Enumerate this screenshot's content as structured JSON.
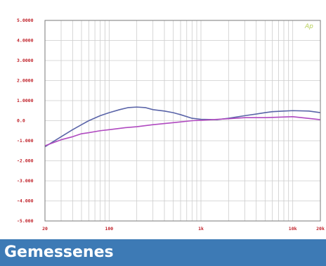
{
  "chart_data": {
    "type": "line",
    "title": "",
    "xlabel": "",
    "ylabel": "",
    "xscale": "log",
    "xlim": [
      20,
      20000
    ],
    "ylim": [
      -5,
      5
    ],
    "grid": true,
    "legend": "none",
    "x_tick_labels": [
      {
        "x": 20,
        "label": "20"
      },
      {
        "x": 100,
        "label": "100"
      },
      {
        "x": 1000,
        "label": "1k"
      },
      {
        "x": 10000,
        "label": "10k"
      },
      {
        "x": 20000,
        "label": "20k"
      }
    ],
    "y_tick_labels": [
      {
        "y": 5,
        "label": "5.0000"
      },
      {
        "y": 4,
        "label": "4.0000"
      },
      {
        "y": 3,
        "label": "3.0000"
      },
      {
        "y": 2,
        "label": "2.0000"
      },
      {
        "y": 1,
        "label": "1.0000"
      },
      {
        "y": 0,
        "label": "0.0"
      },
      {
        "y": -1,
        "label": "-1.000"
      },
      {
        "y": -2,
        "label": "-2.000"
      },
      {
        "y": -3,
        "label": "-3.000"
      },
      {
        "y": -4,
        "label": "-4.000"
      },
      {
        "y": -5,
        "label": "-5.000"
      }
    ],
    "series": [
      {
        "color": "#5a64a8",
        "x": [
          20,
          30,
          40,
          50,
          60,
          80,
          100,
          130,
          160,
          200,
          250,
          300,
          400,
          500,
          600,
          800,
          1000,
          1500,
          2000,
          3000,
          4000,
          5000,
          6000,
          8000,
          10000,
          15000,
          20000
        ],
        "y": [
          -1.3,
          -0.8,
          -0.45,
          -0.2,
          0.0,
          0.25,
          0.4,
          0.55,
          0.65,
          0.68,
          0.65,
          0.55,
          0.48,
          0.4,
          0.3,
          0.12,
          0.07,
          0.05,
          0.12,
          0.25,
          0.33,
          0.4,
          0.45,
          0.48,
          0.5,
          0.48,
          0.4
        ]
      },
      {
        "color": "#b04ac0",
        "x": [
          20,
          30,
          40,
          50,
          60,
          80,
          100,
          150,
          200,
          300,
          500,
          800,
          1000,
          2000,
          3000,
          5000,
          10000,
          20000
        ],
        "y": [
          -1.25,
          -0.95,
          -0.8,
          -0.65,
          -0.6,
          -0.5,
          -0.45,
          -0.35,
          -0.3,
          -0.2,
          -0.1,
          0.0,
          0.02,
          0.1,
          0.15,
          0.15,
          0.2,
          0.05
        ]
      }
    ]
  },
  "watermark": {
    "text": "Ap",
    "color": "#b8d05a"
  },
  "footer": {
    "title": "Gemessenes"
  },
  "colors": {
    "plot_border": "#7a7a7a",
    "grid": "#cccccc",
    "tick_text": "#c02028",
    "banner": "#3d7ab5"
  }
}
